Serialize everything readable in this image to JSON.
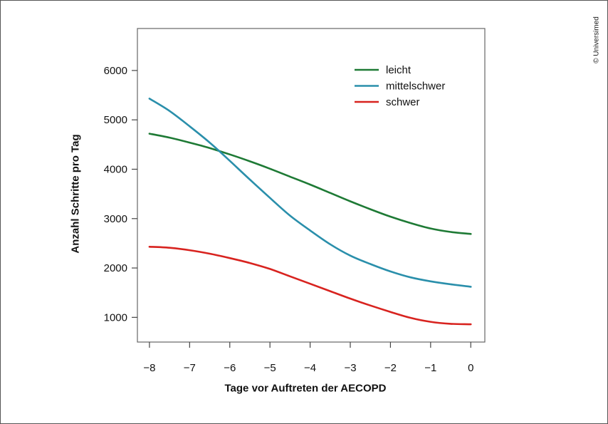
{
  "credit": "© Universimed",
  "chart_data": {
    "type": "line",
    "xlabel": "Tage vor Auftreten der AECOPD",
    "ylabel": "Anzahl Schritte pro Tag",
    "xlim": [
      -8.3,
      0.35
    ],
    "ylim": [
      500,
      6850
    ],
    "xticks": [
      -8,
      -7,
      -6,
      -5,
      -4,
      -3,
      -2,
      -1,
      0
    ],
    "xtick_labels": [
      "−8",
      "−7",
      "−6",
      "−5",
      "−4",
      "−3",
      "−2",
      "−1",
      "0"
    ],
    "yticks": [
      1000,
      2000,
      3000,
      4000,
      5000,
      6000
    ],
    "ytick_labels": [
      "1000",
      "2000",
      "3000",
      "4000",
      "5000",
      "6000"
    ],
    "grid": false,
    "legend_position": "top-right",
    "series": [
      {
        "name": "leicht",
        "color": "#1e7a35",
        "x": [
          -8,
          -7.5,
          -7,
          -6.5,
          -6,
          -5.5,
          -5,
          -4.5,
          -4,
          -3.5,
          -3,
          -2.5,
          -2,
          -1.5,
          -1,
          -0.5,
          0
        ],
        "y": [
          4720,
          4640,
          4540,
          4430,
          4300,
          4160,
          4010,
          3850,
          3690,
          3520,
          3350,
          3190,
          3040,
          2910,
          2800,
          2730,
          2690
        ]
      },
      {
        "name": "mittelschwer",
        "color": "#2a8fab",
        "x": [
          -8,
          -7.5,
          -7,
          -6.5,
          -6,
          -5.5,
          -5,
          -4.5,
          -4,
          -3.5,
          -3,
          -2.5,
          -2,
          -1.5,
          -1,
          -0.5,
          0
        ],
        "y": [
          5430,
          5180,
          4870,
          4540,
          4170,
          3790,
          3420,
          3060,
          2760,
          2480,
          2250,
          2080,
          1930,
          1810,
          1730,
          1670,
          1620
        ]
      },
      {
        "name": "schwer",
        "color": "#d8231f",
        "x": [
          -8,
          -7.5,
          -7,
          -6.5,
          -6,
          -5.5,
          -5,
          -4.5,
          -4,
          -3.5,
          -3,
          -2.5,
          -2,
          -1.5,
          -1,
          -0.5,
          0
        ],
        "y": [
          2430,
          2410,
          2360,
          2290,
          2200,
          2100,
          1980,
          1830,
          1680,
          1530,
          1380,
          1240,
          1110,
          990,
          910,
          870,
          860
        ]
      }
    ]
  }
}
